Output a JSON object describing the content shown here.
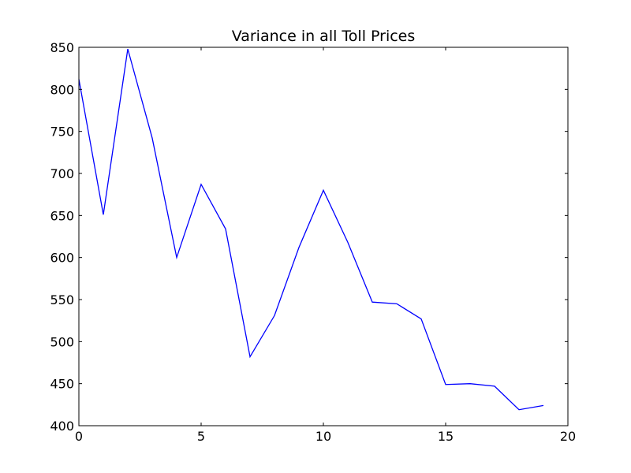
{
  "chart_data": {
    "type": "line",
    "title": "Variance in all Toll Prices",
    "xlabel": "",
    "ylabel": "",
    "xlim": [
      0,
      20
    ],
    "ylim": [
      400,
      850
    ],
    "x_ticks": [
      0,
      5,
      10,
      15,
      20
    ],
    "y_ticks": [
      400,
      450,
      500,
      550,
      600,
      650,
      700,
      750,
      800,
      850
    ],
    "grid": false,
    "series": [
      {
        "color": "#0000ff",
        "x": [
          0,
          1,
          2,
          3,
          4,
          5,
          6,
          7,
          8,
          9,
          10,
          11,
          12,
          13,
          14,
          15,
          16,
          17,
          18,
          19
        ],
        "values": [
          812,
          651,
          848,
          742,
          600,
          687,
          634,
          482,
          531,
          612,
          680,
          618,
          547,
          545,
          527,
          449,
          450,
          447,
          419,
          424
        ]
      }
    ]
  }
}
